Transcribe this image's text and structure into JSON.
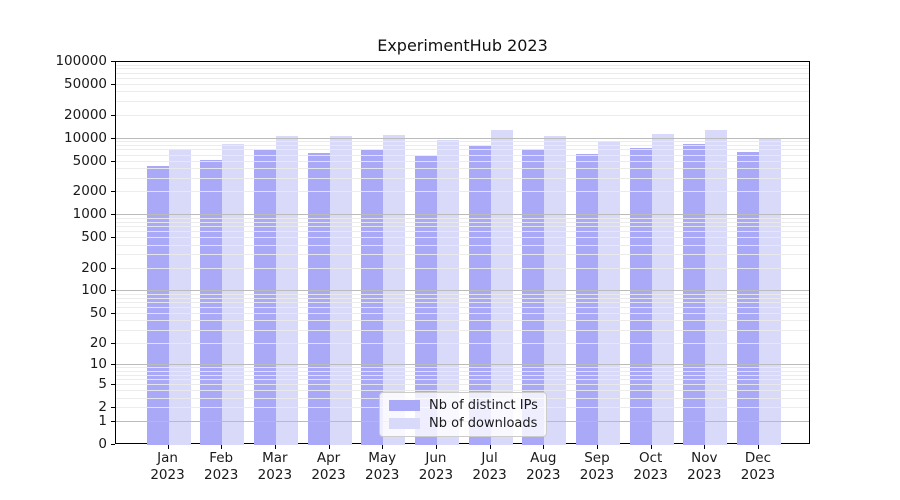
{
  "window": {
    "background": "#ffffff"
  },
  "chart_data": {
    "type": "bar",
    "title": "ExperimentHub 2023",
    "categories": [
      "Jan",
      "Feb",
      "Mar",
      "Apr",
      "May",
      "Jun",
      "Jul",
      "Aug",
      "Sep",
      "Oct",
      "Nov",
      "Dec"
    ],
    "x_year_label": "2023",
    "series": [
      {
        "name": "Nb of distinct IPs",
        "color": "#a9a9f7",
        "values": [
          4400,
          5300,
          7000,
          6500,
          7200,
          5900,
          8000,
          7400,
          6300,
          7600,
          8400,
          6700
        ]
      },
      {
        "name": "Nb of downloads",
        "color": "#d9d9f9",
        "values": [
          7400,
          8500,
          10900,
          10700,
          11100,
          9600,
          13000,
          10700,
          9400,
          11500,
          12900,
          10100
        ]
      }
    ],
    "xlabel": "",
    "ylabel": "",
    "y_ticks": [
      0,
      1,
      2,
      5,
      10,
      20,
      50,
      100,
      200,
      500,
      1000,
      2000,
      5000,
      10000,
      20000,
      50000,
      100000
    ],
    "ylim": [
      0,
      100000
    ],
    "y_scale": "log10(1+x)",
    "grid": "horizontal gridlines at 1-9 steps of each decade, darker at powers of 10",
    "legend_position": "lower center"
  },
  "colors": {
    "minor_grid": "rgba(234,234,234,0.9)",
    "major_grid": "#bbbbbb",
    "axis_text": "#1a1a1a",
    "spine": "#000000",
    "legend_border": "#cccccc"
  }
}
